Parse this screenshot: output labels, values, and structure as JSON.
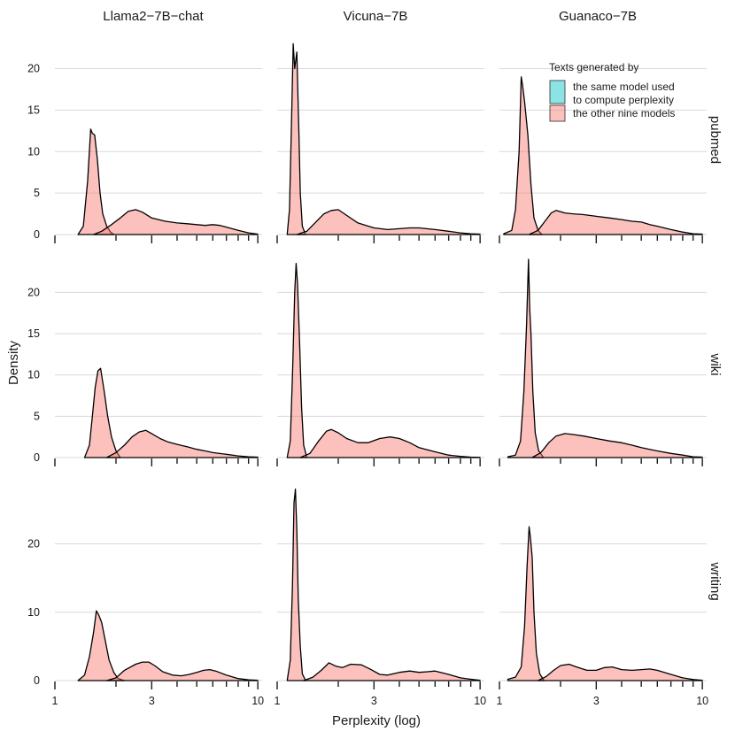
{
  "chart_data": {
    "type": "area",
    "xlabel": "Perplexity (log)",
    "ylabel": "Density",
    "x_scale": "log10",
    "xlim": [
      1,
      10.5
    ],
    "x_ticks": [
      1,
      3,
      10
    ],
    "x_minor_ticks": [
      2,
      4,
      5,
      6,
      7,
      8,
      9
    ],
    "legend": {
      "title": "Texts generated by",
      "entries": [
        {
          "label_line1": "the same model used",
          "label_line2": "to compute perplexity",
          "color": "#00C1C7"
        },
        {
          "label_line1": "the other nine models",
          "label_line2": "",
          "color": "#F8766D"
        }
      ],
      "placement": "top-right"
    },
    "columns": [
      "Llama2−7B−chat",
      "Vicuna−7B",
      "Guanaco−7B"
    ],
    "rows": [
      {
        "label": "pubmed",
        "ylim": [
          0,
          24
        ],
        "y_ticks": [
          0,
          5,
          10,
          15,
          20
        ]
      },
      {
        "label": "wiki",
        "ylim": [
          0,
          24
        ],
        "y_ticks": [
          0,
          5,
          10,
          15,
          20
        ]
      },
      {
        "label": "writing",
        "ylim": [
          0,
          29
        ],
        "y_ticks": [
          0,
          10,
          20
        ]
      }
    ],
    "panels": [
      {
        "row": "pubmed",
        "column": "Llama2−7B−chat",
        "series": [
          {
            "name": "the same model used to compute perplexity",
            "x": [
              1.3,
              1.38,
              1.45,
              1.5,
              1.53,
              1.57,
              1.62,
              1.67,
              1.72,
              1.8,
              1.88,
              1.95
            ],
            "y": [
              0,
              1,
              6.5,
              12.7,
              12.2,
              12.0,
              9.0,
              5.0,
              2.5,
              1.0,
              0.3,
              0
            ]
          },
          {
            "name": "the other nine models",
            "x": [
              1.55,
              1.7,
              1.9,
              2.1,
              2.3,
              2.5,
              2.7,
              3.0,
              3.5,
              4.0,
              4.5,
              5.0,
              5.5,
              6.0,
              6.5,
              7.0,
              8.0,
              9.0,
              10.0
            ],
            "y": [
              0,
              0.4,
              1.2,
              2.0,
              2.8,
              3.0,
              2.7,
              2.0,
              1.6,
              1.4,
              1.3,
              1.2,
              1.1,
              1.2,
              1.1,
              0.9,
              0.5,
              0.2,
              0.05
            ]
          }
        ]
      },
      {
        "row": "pubmed",
        "column": "Vicuna−7B",
        "series": [
          {
            "name": "the same model used to compute perplexity",
            "x": [
              1.12,
              1.15,
              1.18,
              1.2,
              1.22,
              1.25,
              1.28,
              1.3,
              1.33,
              1.38
            ],
            "y": [
              0,
              3,
              15,
              23,
              20,
              22,
              12,
              5,
              1,
              0
            ]
          },
          {
            "name": "the other nine models",
            "x": [
              1.25,
              1.4,
              1.55,
              1.7,
              1.85,
              2.0,
              2.2,
              2.5,
              3.0,
              3.5,
              4.0,
              4.5,
              5.0,
              6.0,
              7.0,
              8.0,
              9.0,
              10.0
            ],
            "y": [
              0,
              0.4,
              1.5,
              2.5,
              2.9,
              3.0,
              2.3,
              1.4,
              0.8,
              0.6,
              0.7,
              0.8,
              0.8,
              0.6,
              0.4,
              0.2,
              0.1,
              0.05
            ]
          }
        ]
      },
      {
        "row": "pubmed",
        "column": "Guanaco−7B",
        "series": [
          {
            "name": "the same model used to compute perplexity",
            "x": [
              1.05,
              1.15,
              1.2,
              1.25,
              1.28,
              1.3,
              1.33,
              1.38,
              1.43,
              1.48,
              1.55,
              1.62
            ],
            "y": [
              0.1,
              0.5,
              3,
              10,
              19,
              18,
              16,
              12,
              6,
              2,
              0.5,
              0
            ]
          },
          {
            "name": "the other nine models",
            "x": [
              1.4,
              1.55,
              1.7,
              1.8,
              1.9,
              2.1,
              2.3,
              2.6,
              3.0,
              3.5,
              4.0,
              4.5,
              5.0,
              5.5,
              6.0,
              7.0,
              8.0,
              9.0,
              10.0
            ],
            "y": [
              0,
              0.5,
              1.8,
              2.6,
              2.9,
              2.6,
              2.5,
              2.4,
              2.2,
              2.0,
              1.8,
              1.6,
              1.5,
              1.2,
              1.0,
              0.6,
              0.3,
              0.1,
              0.05
            ]
          }
        ]
      },
      {
        "row": "wiki",
        "column": "Llama2−7B−chat",
        "series": [
          {
            "name": "the same model used to compute perplexity",
            "x": [
              1.4,
              1.48,
              1.53,
              1.58,
              1.63,
              1.68,
              1.75,
              1.82,
              1.9,
              2.0,
              2.1
            ],
            "y": [
              0,
              1.5,
              5,
              8.5,
              10.5,
              10.8,
              8,
              5,
              2.5,
              0.8,
              0
            ]
          },
          {
            "name": "the other nine models",
            "x": [
              1.8,
              2.0,
              2.2,
              2.4,
              2.6,
              2.8,
              3.0,
              3.3,
              3.6,
              4.0,
              4.5,
              5.0,
              5.5,
              6.0,
              7.0,
              8.0,
              9.0,
              10.0
            ],
            "y": [
              0,
              0.6,
              1.5,
              2.5,
              3.1,
              3.3,
              2.9,
              2.3,
              1.9,
              1.6,
              1.3,
              1.0,
              0.8,
              0.6,
              0.4,
              0.2,
              0.1,
              0.05
            ]
          }
        ]
      },
      {
        "row": "wiki",
        "column": "Vicuna−7B",
        "series": [
          {
            "name": "the same model used to compute perplexity",
            "x": [
              1.12,
              1.16,
              1.19,
              1.22,
              1.24,
              1.26,
              1.29,
              1.32,
              1.35,
              1.4
            ],
            "y": [
              0,
              2,
              10,
              20,
              23.5,
              21,
              14,
              6,
              1.5,
              0
            ]
          },
          {
            "name": "the other nine models",
            "x": [
              1.3,
              1.45,
              1.6,
              1.75,
              1.85,
              2.0,
              2.2,
              2.5,
              2.8,
              3.2,
              3.6,
              4.0,
              4.5,
              5.0,
              6.0,
              7.0,
              8.0,
              9.0,
              10.0
            ],
            "y": [
              0,
              0.5,
              2.0,
              3.2,
              3.4,
              3.0,
              2.3,
              1.8,
              1.8,
              2.3,
              2.5,
              2.3,
              1.8,
              1.2,
              0.7,
              0.3,
              0.15,
              0.05,
              0.02
            ]
          }
        ]
      },
      {
        "row": "wiki",
        "column": "Guanaco−7B",
        "series": [
          {
            "name": "the same model used to compute perplexity",
            "x": [
              1.1,
              1.2,
              1.27,
              1.32,
              1.36,
              1.39,
              1.41,
              1.43,
              1.46,
              1.5,
              1.56,
              1.65
            ],
            "y": [
              0.1,
              0.3,
              2,
              8,
              16,
              24,
              18,
              15,
              8,
              3,
              0.8,
              0
            ]
          },
          {
            "name": "the other nine models",
            "x": [
              1.45,
              1.6,
              1.75,
              1.9,
              2.1,
              2.3,
              2.6,
              3.0,
              3.5,
              4.0,
              4.5,
              5.0,
              5.5,
              6.0,
              7.0,
              8.0,
              9.0,
              10.0
            ],
            "y": [
              0,
              0.6,
              1.8,
              2.6,
              2.9,
              2.8,
              2.6,
              2.3,
              2.0,
              1.8,
              1.5,
              1.2,
              1.0,
              0.8,
              0.5,
              0.3,
              0.1,
              0.05
            ]
          }
        ]
      },
      {
        "row": "writing",
        "column": "Llama2−7B−chat",
        "series": [
          {
            "name": "the same model used to compute perplexity",
            "x": [
              1.3,
              1.4,
              1.48,
              1.55,
              1.6,
              1.65,
              1.7,
              1.78,
              1.85,
              1.95,
              2.05,
              2.2
            ],
            "y": [
              0,
              0.8,
              3.5,
              7,
              10.2,
              9.5,
              8.5,
              5.5,
              3,
              1.2,
              0.3,
              0
            ]
          },
          {
            "name": "the other nine models",
            "x": [
              1.8,
              2.0,
              2.2,
              2.5,
              2.7,
              2.9,
              3.1,
              3.4,
              3.8,
              4.2,
              4.6,
              5.0,
              5.4,
              5.8,
              6.2,
              7.0,
              8.0,
              9.0,
              10.0
            ],
            "y": [
              0,
              0.4,
              1.5,
              2.4,
              2.7,
              2.7,
              2.2,
              1.3,
              0.8,
              0.7,
              0.9,
              1.2,
              1.5,
              1.6,
              1.4,
              0.8,
              0.3,
              0.1,
              0.05
            ]
          }
        ]
      },
      {
        "row": "writing",
        "column": "Vicuna−7B",
        "series": [
          {
            "name": "the same model used to compute perplexity",
            "x": [
              1.12,
              1.16,
              1.19,
              1.21,
              1.23,
              1.25,
              1.27,
              1.3,
              1.33,
              1.38
            ],
            "y": [
              0,
              3,
              14,
              26,
              28,
              22,
              12,
              5,
              1,
              0
            ]
          },
          {
            "name": "the other nine models",
            "x": [
              1.35,
              1.5,
              1.65,
              1.8,
              1.95,
              2.1,
              2.3,
              2.6,
              2.9,
              3.2,
              3.5,
              4.0,
              4.5,
              5.0,
              5.5,
              6.0,
              7.0,
              8.0,
              9.0,
              10.0
            ],
            "y": [
              0,
              0.5,
              1.5,
              2.6,
              2.1,
              1.9,
              2.4,
              2.3,
              1.6,
              0.9,
              0.8,
              1.2,
              1.4,
              1.2,
              1.3,
              1.4,
              0.9,
              0.4,
              0.2,
              0.05
            ]
          }
        ]
      },
      {
        "row": "writing",
        "column": "Guanaco−7B",
        "series": [
          {
            "name": "the same model used to compute perplexity",
            "x": [
              1.1,
              1.2,
              1.28,
              1.33,
              1.37,
              1.4,
              1.42,
              1.45,
              1.48,
              1.52,
              1.58,
              1.66
            ],
            "y": [
              0.2,
              0.5,
              2,
              8,
              17,
              22.5,
              21,
              18,
              10,
              4,
              1,
              0
            ]
          },
          {
            "name": "the other nine models",
            "x": [
              1.55,
              1.7,
              1.85,
              2.0,
              2.2,
              2.4,
              2.7,
              3.0,
              3.3,
              3.6,
              4.0,
              4.5,
              5.0,
              5.5,
              6.0,
              7.0,
              8.0,
              9.0,
              10.0
            ],
            "y": [
              0,
              0.6,
              1.5,
              2.2,
              2.4,
              2.0,
              1.5,
              1.5,
              1.9,
              2.0,
              1.6,
              1.5,
              1.6,
              1.7,
              1.5,
              0.9,
              0.4,
              0.15,
              0.05
            ]
          }
        ]
      }
    ]
  }
}
